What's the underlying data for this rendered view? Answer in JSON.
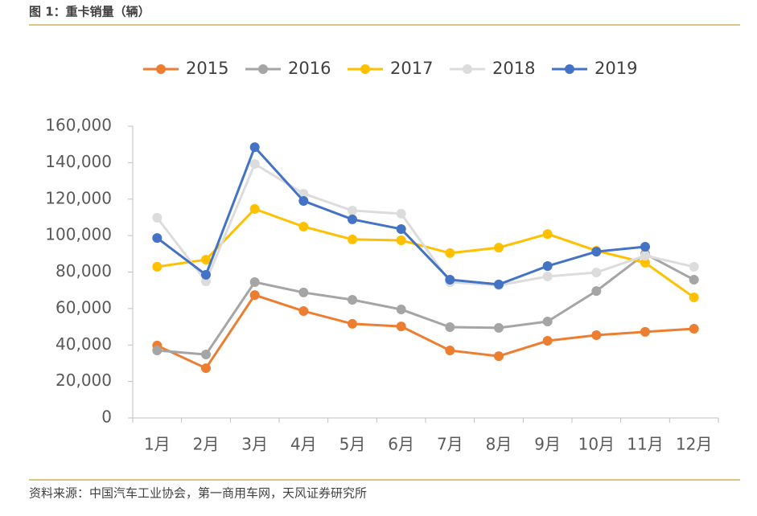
{
  "title": "图 1：重卡销量（辆）",
  "source": "资料来源：中国汽车工业协会，第一商用车网，天风证券研究所",
  "chart_data": {
    "type": "line",
    "categories": [
      "1月",
      "2月",
      "3月",
      "4月",
      "5月",
      "6月",
      "7月",
      "8月",
      "9月",
      "10月",
      "11月",
      "12月"
    ],
    "series": [
      {
        "name": "2015",
        "color": "#ed7d31",
        "values": [
          39700,
          27300,
          67400,
          58600,
          51600,
          50200,
          37000,
          33900,
          42300,
          45400,
          47200,
          48900
        ]
      },
      {
        "name": "2016",
        "color": "#a5a5a5",
        "values": [
          37000,
          34800,
          74500,
          68800,
          64800,
          59500,
          49800,
          49400,
          52900,
          69600,
          90000,
          75800
        ]
      },
      {
        "name": "2017",
        "color": "#ffc000",
        "values": [
          82900,
          86800,
          114600,
          104900,
          97900,
          97400,
          90400,
          93400,
          100900,
          91700,
          85100,
          66100
        ]
      },
      {
        "name": "2018",
        "color": "#dcdcdc",
        "values": [
          109800,
          74900,
          139300,
          123000,
          113700,
          112000,
          74500,
          72700,
          77600,
          79800,
          89000,
          82900
        ]
      },
      {
        "name": "2019",
        "color": "#4472c4",
        "values": [
          98700,
          78500,
          148500,
          119000,
          108900,
          103600,
          75800,
          73200,
          83300,
          91200,
          93900,
          null
        ]
      }
    ],
    "ylim": [
      0,
      160000
    ],
    "yticks": [
      0,
      {
        "value": 20000,
        "label": "20,000"
      },
      {
        "value": 40000,
        "label": "40,000"
      },
      {
        "value": 60000,
        "label": "60,000"
      },
      {
        "value": 80000,
        "label": "80,000"
      },
      {
        "value": 100000,
        "label": "100,000"
      },
      {
        "value": 120000,
        "label": "120,000"
      },
      {
        "value": 140000,
        "label": "140,000"
      },
      {
        "value": 160000,
        "label": "160,000"
      }
    ],
    "grid": false,
    "legend": "top"
  }
}
